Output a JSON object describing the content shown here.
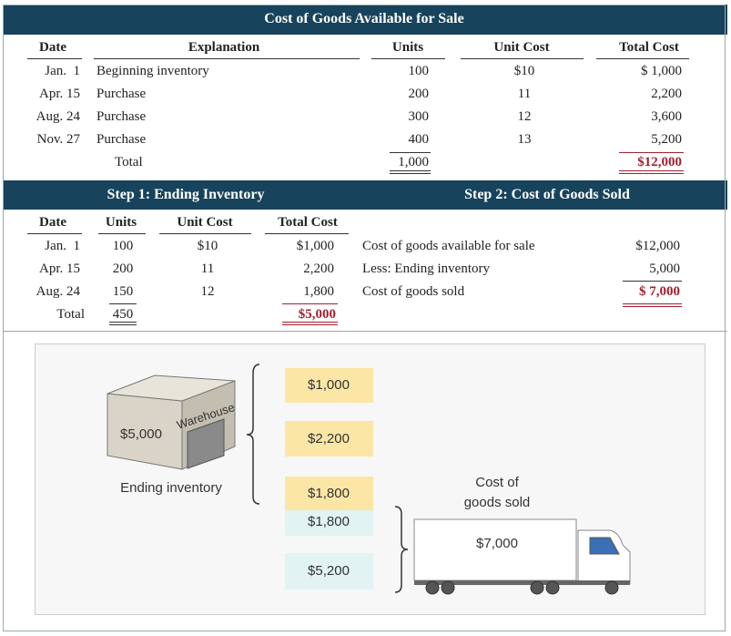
{
  "section1": {
    "title": "Cost of Goods Available for Sale",
    "headers": [
      "Date",
      "Explanation",
      "Units",
      "Unit Cost",
      "Total Cost"
    ],
    "rows": [
      [
        "Jan.  1",
        "Beginning inventory",
        "100",
        "$10",
        "$ 1,000"
      ],
      [
        "Apr. 15",
        "Purchase",
        "200",
        "11",
        "2,200"
      ],
      [
        "Aug. 24",
        "Purchase",
        "300",
        "12",
        "3,600"
      ],
      [
        "Nov. 27",
        "Purchase",
        "400",
        "13",
        "5,200"
      ]
    ],
    "total": {
      "label": "Total",
      "units": "1,000",
      "cost": "$12,000"
    }
  },
  "step1": {
    "title": "Step 1: Ending Inventory",
    "headers": [
      "Date",
      "Units",
      "Unit Cost",
      "Total Cost"
    ],
    "rows": [
      [
        "Jan.  1",
        "100",
        "$10",
        "$1,000"
      ],
      [
        "Apr. 15",
        "200",
        "11",
        "2,200"
      ],
      [
        "Aug. 24",
        "150",
        "12",
        "1,800"
      ]
    ],
    "total": {
      "label": "Total",
      "units": "450",
      "cost": "$5,000"
    }
  },
  "step2": {
    "title": "Step 2: Cost of Goods Sold",
    "rows": [
      [
        "Cost of goods available for sale",
        "$12,000"
      ],
      [
        "Less: Ending inventory",
        "5,000"
      ],
      [
        "Cost of goods sold",
        "$ 7,000"
      ]
    ]
  },
  "illustration": {
    "warehouse_sign": "Warehouse",
    "warehouse_value": "$5,000",
    "ending_label": "Ending inventory",
    "blocks": [
      "$1,000",
      "$2,200",
      "$1,800",
      "$1,800",
      "$5,200"
    ],
    "cogs_label": [
      "Cost of",
      "goods sold"
    ],
    "truck_value": "$7,000"
  }
}
